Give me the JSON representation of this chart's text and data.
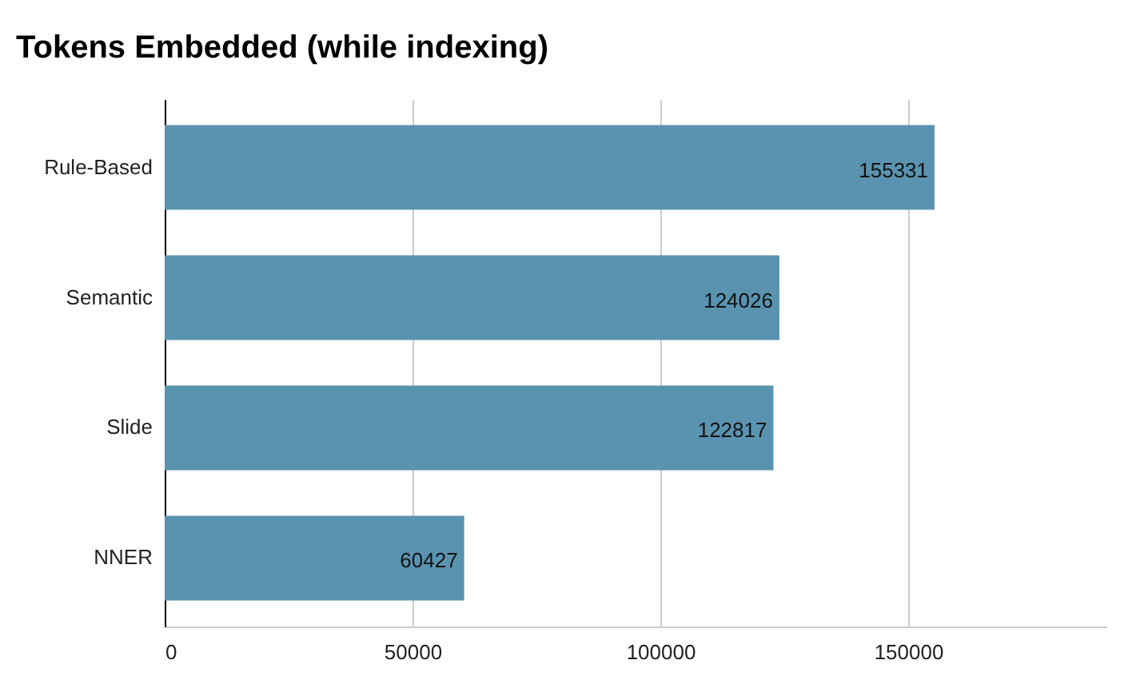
{
  "chart_data": {
    "type": "bar",
    "orientation": "horizontal",
    "title": "Tokens Embedded (while indexing)",
    "categories": [
      "Rule-Based",
      "Semantic",
      "Slide",
      "NNER"
    ],
    "values": [
      155331,
      124026,
      122817,
      60427
    ],
    "color": "#5a93b0",
    "data_labels": true,
    "xlim": [
      0,
      190000
    ],
    "xticks": [
      0,
      50000,
      100000,
      150000
    ],
    "grid": "x"
  }
}
